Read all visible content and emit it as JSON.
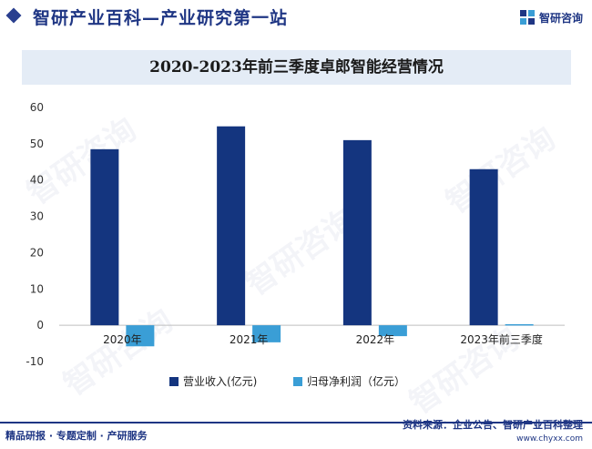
{
  "header": {
    "site_title": "智研产业百科—产业研究第一站",
    "brand_name": "智研咨询",
    "brand_logo_icon": "zhiyan-logo-icon"
  },
  "footer": {
    "left_text": "精品研报 · 专题定制 · 产研服务",
    "source_text": "资料来源：企业公告、智研产业百科整理",
    "url_text": "www.chyxx.com"
  },
  "watermark": {
    "text": "智研咨询"
  },
  "colors": {
    "brand": "#1f3684",
    "revenue": "#14357f",
    "profit": "#3a9ed6",
    "title_band": "#e4ecf6"
  },
  "chart_data": {
    "type": "bar",
    "title": "2020-2023年前三季度卓郎智能经营情况",
    "categories": [
      "2020年",
      "2021年",
      "2022年",
      "2023年前三季度"
    ],
    "series": [
      {
        "name": "营业收入(亿元)",
        "values": [
          48.5,
          54.8,
          51.0,
          43.0
        ]
      },
      {
        "name": "归母净利润（亿元）",
        "values": [
          -5.8,
          -4.7,
          -3.0,
          0.3
        ]
      }
    ],
    "xlabel": "",
    "ylabel": "",
    "ylim": [
      -10,
      60
    ],
    "yticks": [
      -10,
      0,
      10,
      20,
      30,
      40,
      50,
      60
    ],
    "grid": false,
    "legend": "bottom-center"
  }
}
